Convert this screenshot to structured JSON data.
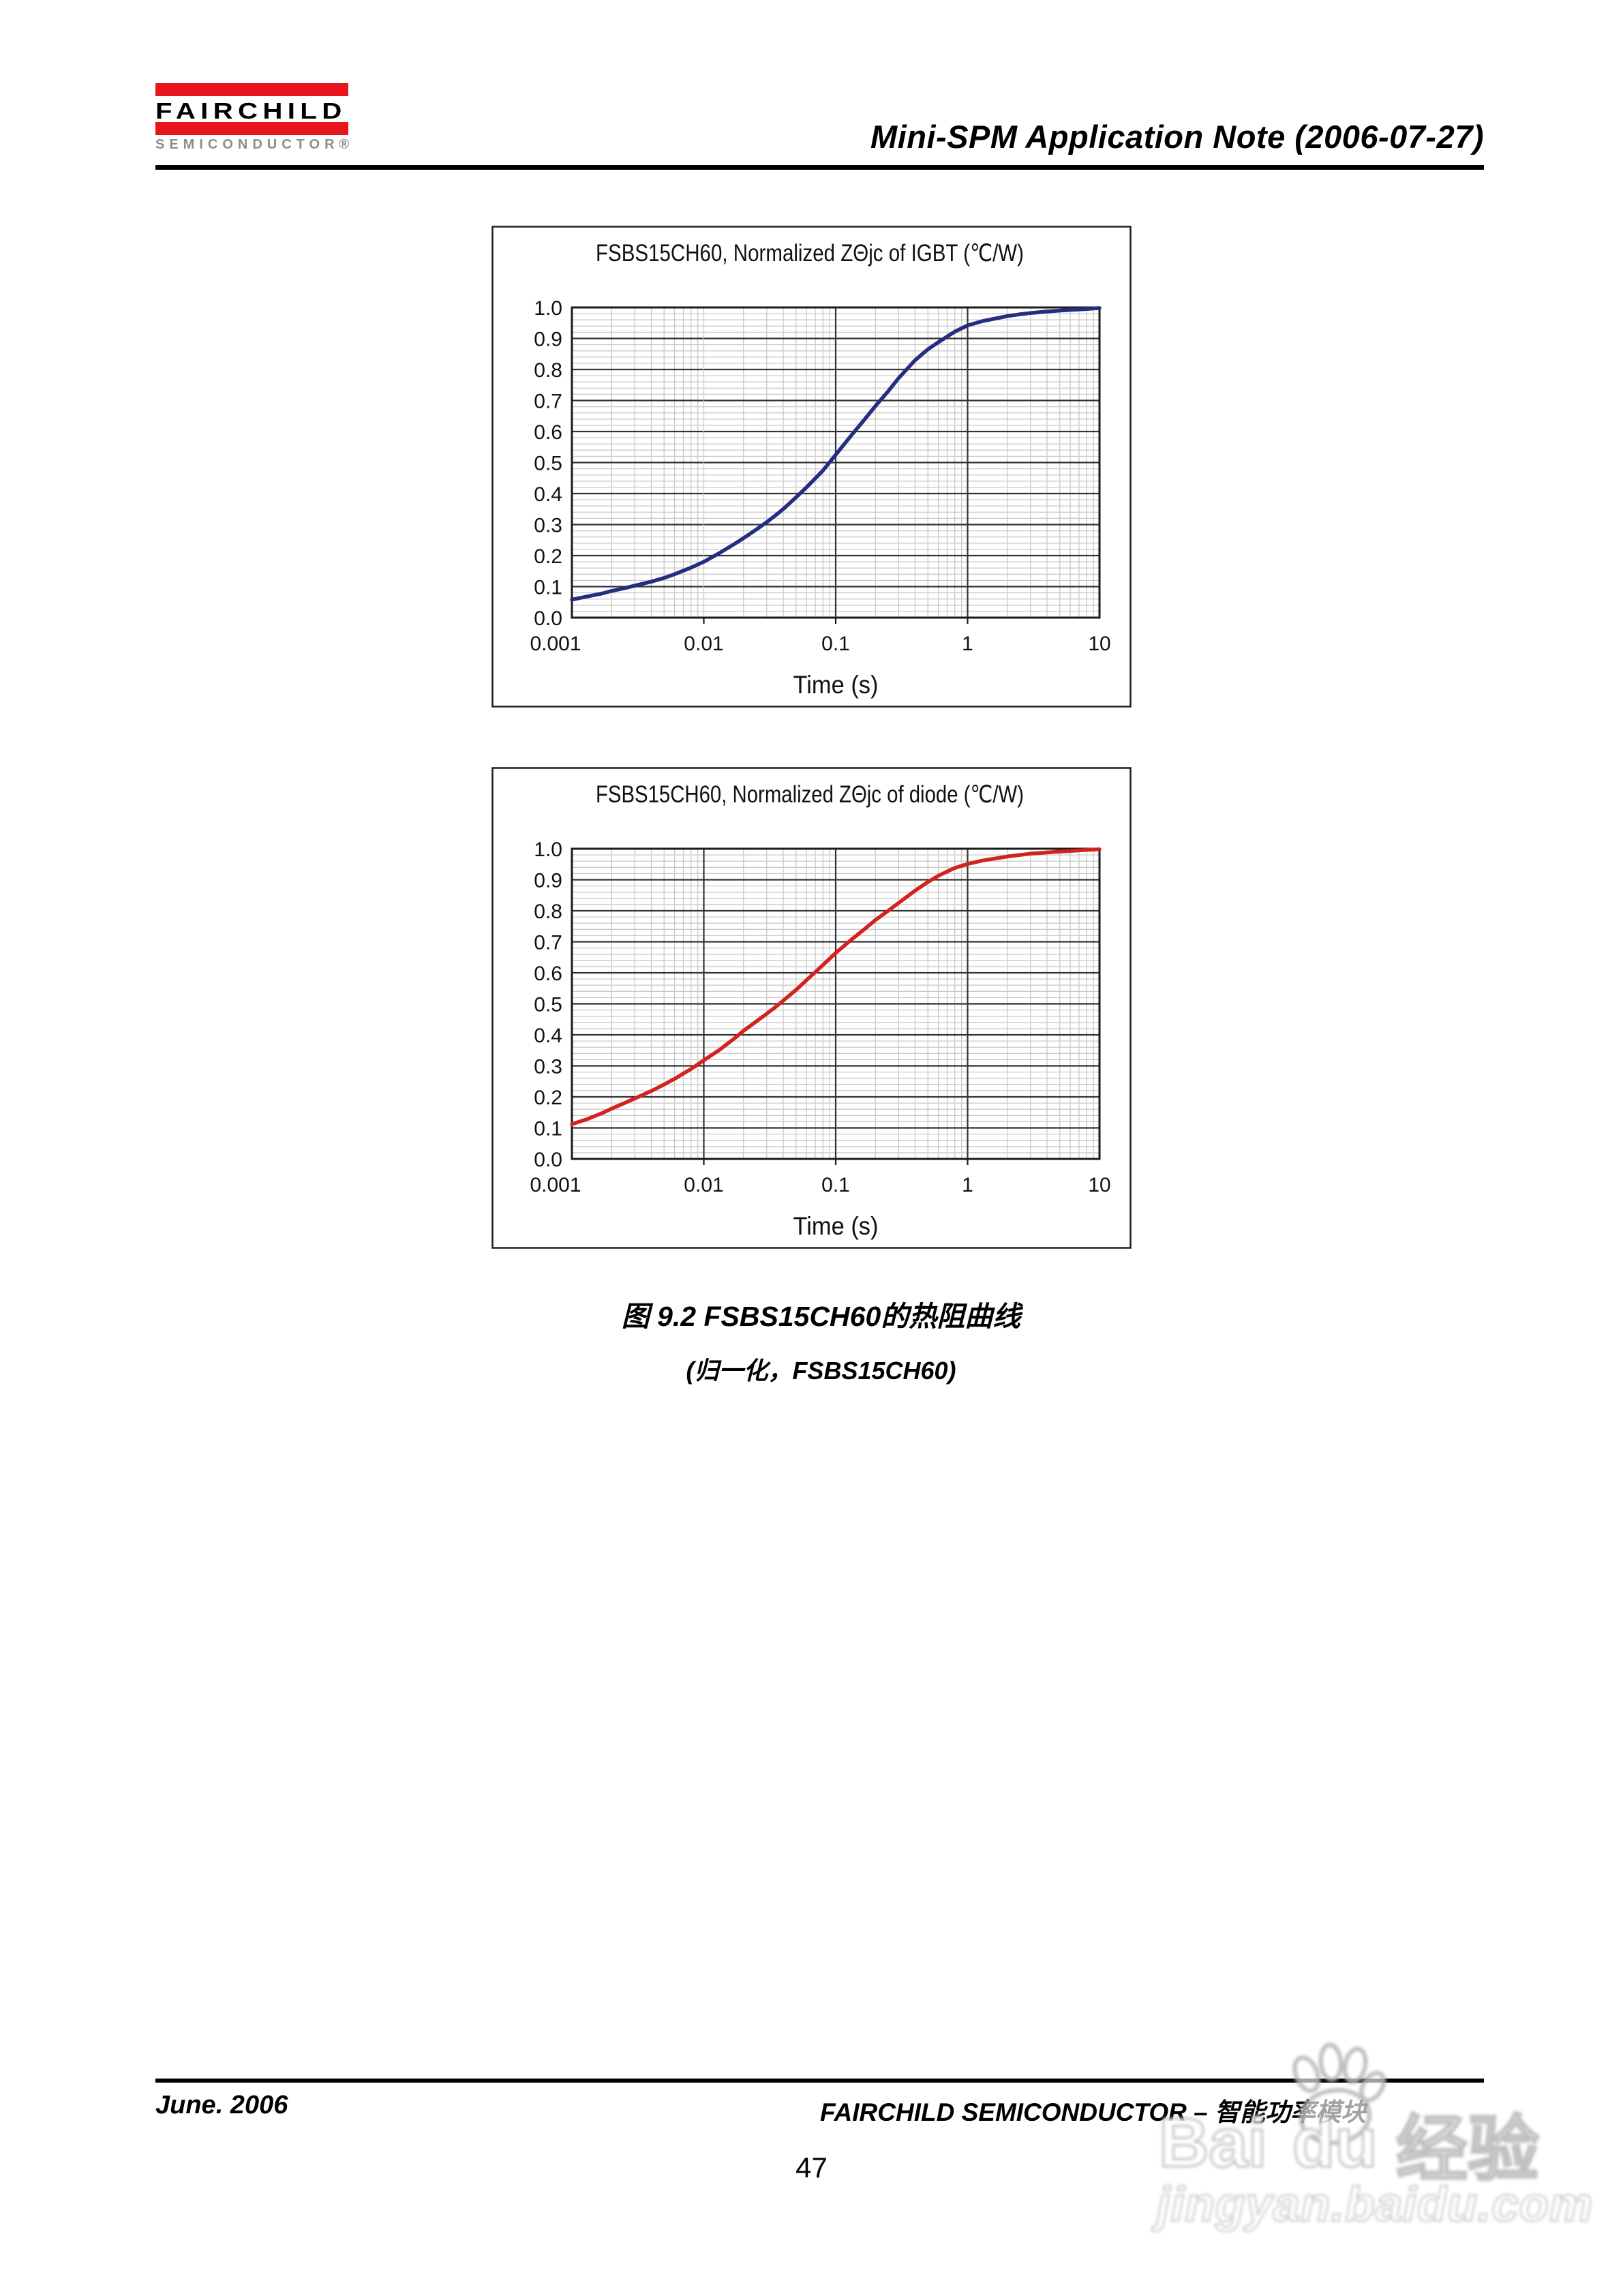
{
  "header": {
    "logo_line1": "FAIRCHILD",
    "logo_line2": "SEMICONDUCTOR®",
    "brand_red": "#e8151d",
    "logo_gray": "#8d8d8d",
    "title": "Mini-SPM Application Note (2006-07-27)"
  },
  "chart_data": [
    {
      "type": "line",
      "title": "FSBS15CH60, Normalized ZΘjc of IGBT (℃/W)",
      "xlabel": "Time (s)",
      "xscale": "log",
      "xlim": [
        0.001,
        10
      ],
      "ylim": [
        0.0,
        1.0
      ],
      "x_ticks": [
        "0.001",
        "0.01",
        "0.1",
        "1",
        "10"
      ],
      "y_ticks": [
        "0.0",
        "0.1",
        "0.2",
        "0.3",
        "0.4",
        "0.5",
        "0.6",
        "0.7",
        "0.8",
        "0.9",
        "1.0"
      ],
      "dark_decades": [
        "0.1",
        "1"
      ],
      "line_color": "#232e7e",
      "series": [
        {
          "name": "IGBT normalized ZΘjc",
          "x": [
            0.001,
            0.0013,
            0.0017,
            0.002,
            0.0025,
            0.003,
            0.004,
            0.005,
            0.006,
            0.008,
            0.01,
            0.013,
            0.017,
            0.02,
            0.025,
            0.03,
            0.035,
            0.04,
            0.05,
            0.06,
            0.08,
            0.1,
            0.13,
            0.17,
            0.2,
            0.25,
            0.3,
            0.4,
            0.5,
            0.6,
            0.8,
            1,
            1.3,
            1.7,
            2,
            2.5,
            3,
            4,
            5,
            6,
            8,
            10
          ],
          "y": [
            0.058,
            0.068,
            0.078,
            0.086,
            0.095,
            0.103,
            0.116,
            0.128,
            0.14,
            0.161,
            0.18,
            0.207,
            0.237,
            0.256,
            0.284,
            0.308,
            0.33,
            0.35,
            0.388,
            0.42,
            0.474,
            0.525,
            0.585,
            0.645,
            0.682,
            0.73,
            0.772,
            0.83,
            0.865,
            0.888,
            0.922,
            0.942,
            0.956,
            0.966,
            0.972,
            0.978,
            0.982,
            0.987,
            0.99,
            0.992,
            0.995,
            0.998
          ]
        }
      ]
    },
    {
      "type": "line",
      "title": "FSBS15CH60, Normalized ZΘjc of diode (℃/W)",
      "xlabel": "Time (s)",
      "xscale": "log",
      "xlim": [
        0.001,
        10
      ],
      "ylim": [
        0.0,
        1.0
      ],
      "x_ticks": [
        "0.001",
        "0.01",
        "0.1",
        "1",
        "10"
      ],
      "y_ticks": [
        "0.0",
        "0.1",
        "0.2",
        "0.3",
        "0.4",
        "0.5",
        "0.6",
        "0.7",
        "0.8",
        "0.9",
        "1.0"
      ],
      "dark_decades": [
        "0.01",
        "0.1",
        "1"
      ],
      "line_color": "#d2231f",
      "series": [
        {
          "name": "diode normalized ZΘjc",
          "x": [
            0.001,
            0.0013,
            0.0017,
            0.002,
            0.0025,
            0.003,
            0.004,
            0.005,
            0.006,
            0.008,
            0.01,
            0.013,
            0.017,
            0.02,
            0.025,
            0.03,
            0.035,
            0.04,
            0.05,
            0.06,
            0.08,
            0.1,
            0.13,
            0.17,
            0.2,
            0.25,
            0.3,
            0.4,
            0.5,
            0.6,
            0.8,
            1,
            1.3,
            1.7,
            2,
            2.5,
            3,
            4,
            5,
            6,
            8,
            10
          ],
          "y": [
            0.112,
            0.128,
            0.148,
            0.162,
            0.18,
            0.195,
            0.219,
            0.24,
            0.258,
            0.29,
            0.318,
            0.35,
            0.388,
            0.413,
            0.443,
            0.468,
            0.49,
            0.51,
            0.545,
            0.576,
            0.625,
            0.664,
            0.705,
            0.745,
            0.77,
            0.8,
            0.825,
            0.865,
            0.893,
            0.913,
            0.938,
            0.951,
            0.962,
            0.97,
            0.975,
            0.98,
            0.984,
            0.988,
            0.991,
            0.993,
            0.996,
            0.998
          ]
        }
      ]
    }
  ],
  "caption": {
    "line1": "图 9.2 FSBS15CH60的热阻曲线",
    "line2": "(归一化，FSBS15CH60)"
  },
  "footer": {
    "left": "June. 2006",
    "right": "FAIRCHILD SEMICONDUCTOR – 智能功率模块",
    "page_number": "47"
  },
  "watermark": {
    "big_left": "Bai",
    "big_right": "du",
    "big_cn": "经验",
    "small": "jingyan.baidu.com",
    "paw_icon": "baidu-paw-icon",
    "color": "#b6b6b6"
  }
}
